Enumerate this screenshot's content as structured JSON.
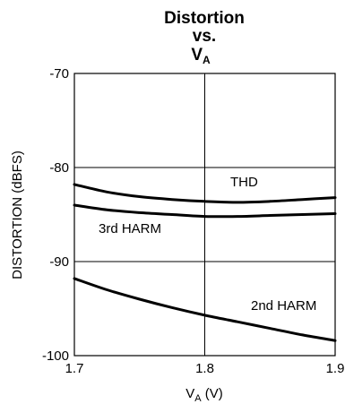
{
  "chart_data": {
    "type": "line",
    "title": {
      "line1": "Distortion",
      "line2": "vs.",
      "line3_main": "V",
      "line3_sub": "A"
    },
    "xlabel": {
      "main": "V",
      "sub": "A",
      "unit": " (V)"
    },
    "ylabel": "DISTORTION (dBFS)",
    "xlim": [
      1.7,
      1.9
    ],
    "ylim": [
      -100,
      -70
    ],
    "x_ticks": [
      "1.7",
      "1.8",
      "1.9"
    ],
    "y_ticks": [
      "-70",
      "-80",
      "-90",
      "-100"
    ],
    "grid": true,
    "series": [
      {
        "name": "THD",
        "x": [
          1.7,
          1.725,
          1.75,
          1.775,
          1.8,
          1.825,
          1.85,
          1.875,
          1.9
        ],
        "y": [
          -81.8,
          -82.6,
          -83.1,
          -83.4,
          -83.6,
          -83.7,
          -83.6,
          -83.4,
          -83.2
        ]
      },
      {
        "name": "3rd HARM",
        "x": [
          1.7,
          1.725,
          1.75,
          1.775,
          1.8,
          1.825,
          1.85,
          1.875,
          1.9
        ],
        "y": [
          -84.0,
          -84.5,
          -84.8,
          -85.0,
          -85.2,
          -85.2,
          -85.1,
          -85.0,
          -84.9
        ]
      },
      {
        "name": "2nd HARM",
        "x": [
          1.7,
          1.725,
          1.75,
          1.775,
          1.8,
          1.825,
          1.85,
          1.875,
          1.9
        ],
        "y": [
          -91.8,
          -93.0,
          -94.0,
          -94.9,
          -95.7,
          -96.4,
          -97.1,
          -97.8,
          -98.4
        ]
      }
    ]
  }
}
